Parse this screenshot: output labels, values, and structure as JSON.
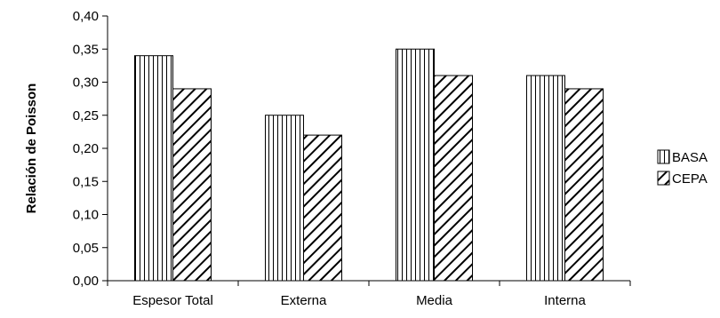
{
  "chart_data": {
    "type": "bar",
    "title": "",
    "xlabel": "",
    "ylabel": "Relación de Poisson",
    "categories": [
      "Espesor Total",
      "Externa",
      "Media",
      "Interna"
    ],
    "series": [
      {
        "name": "BASA",
        "values": [
          0.34,
          0.25,
          0.35,
          0.31
        ],
        "pattern": "vertical-lines"
      },
      {
        "name": "CEPA",
        "values": [
          0.29,
          0.22,
          0.31,
          0.29
        ],
        "pattern": "diagonal-lines"
      }
    ],
    "ylim": [
      0,
      0.4
    ],
    "yticks": [
      "0,00",
      "0,05",
      "0,10",
      "0,15",
      "0,20",
      "0,25",
      "0,30",
      "0,35",
      "0,40"
    ],
    "grid": false,
    "legend": "right",
    "colors": {
      "stroke": "#000000",
      "fill": "#ffffff"
    }
  }
}
